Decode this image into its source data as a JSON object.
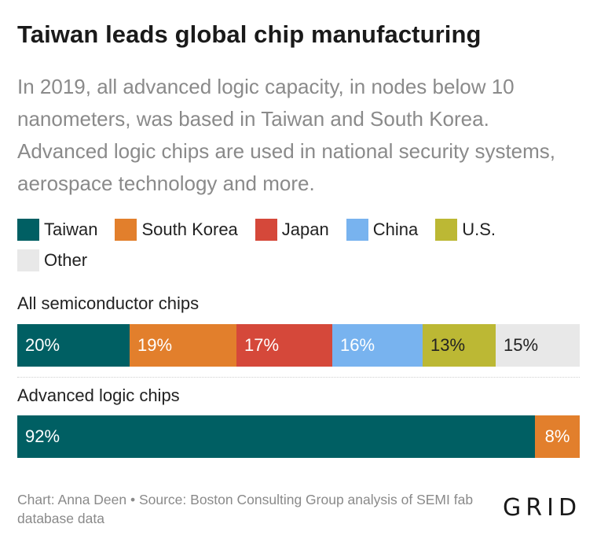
{
  "title": "Taiwan leads global chip manufacturing",
  "subtitle": "In 2019, all advanced logic capacity, in nodes below 10 nanometers, was based in Taiwan and South Korea. Advanced logic chips are used in national security systems, aerospace technology and more.",
  "footer": "Chart: Anna Deen • Source: Boston Consulting Group analysis of SEMI fab database data",
  "logo": "GRID",
  "colors": {
    "Taiwan": "#005f63",
    "South Korea": "#e27f2c",
    "Japan": "#d5483a",
    "China": "#78b3ef",
    "U.S.": "#bcb834",
    "Other": "#e8e8e8"
  },
  "chart_data": {
    "type": "bar",
    "stacked": true,
    "orientation": "horizontal",
    "normalized": true,
    "categories": [
      "All semiconductor chips",
      "Advanced logic chips"
    ],
    "series": [
      {
        "name": "Taiwan",
        "values": [
          20,
          92
        ],
        "labels": [
          "20%",
          "92%"
        ]
      },
      {
        "name": "South Korea",
        "values": [
          19,
          8
        ],
        "labels": [
          "19%",
          "8%"
        ]
      },
      {
        "name": "Japan",
        "values": [
          17,
          0
        ],
        "labels": [
          "17%",
          ""
        ]
      },
      {
        "name": "China",
        "values": [
          16,
          0
        ],
        "labels": [
          "16%",
          ""
        ]
      },
      {
        "name": "U.S.",
        "values": [
          13,
          0
        ],
        "labels": [
          "13%",
          ""
        ]
      },
      {
        "name": "Other",
        "values": [
          15,
          0
        ],
        "labels": [
          "15%",
          ""
        ]
      }
    ],
    "legend": "top-left"
  }
}
